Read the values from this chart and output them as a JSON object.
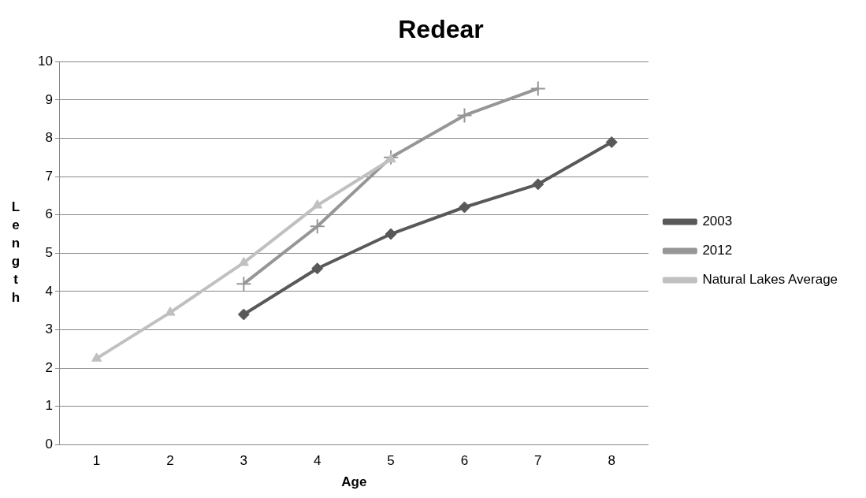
{
  "chart_data": {
    "type": "line",
    "title": "Redear",
    "xlabel": "Age",
    "ylabel": "Length",
    "categories": [
      "1",
      "2",
      "3",
      "4",
      "5",
      "6",
      "7",
      "8"
    ],
    "series": [
      {
        "name": "2003",
        "color": "#595959",
        "marker": "diamond",
        "values": [
          null,
          null,
          3.4,
          4.6,
          5.5,
          6.2,
          6.8,
          7.9
        ]
      },
      {
        "name": "2012",
        "color": "#969696",
        "marker": "cross",
        "values": [
          null,
          null,
          4.2,
          5.7,
          7.5,
          8.6,
          9.3,
          null
        ]
      },
      {
        "name": "Natural Lakes Average",
        "color": "#c0c0c0",
        "marker": "triangle",
        "values": [
          2.25,
          3.45,
          4.75,
          6.25,
          7.45,
          null,
          null,
          null
        ]
      }
    ],
    "ylim": [
      0,
      10
    ],
    "yticks": [
      0,
      1,
      2,
      3,
      4,
      5,
      6,
      7,
      8,
      9,
      10
    ],
    "grid": "y",
    "legend": "right",
    "line_style": "solid"
  }
}
